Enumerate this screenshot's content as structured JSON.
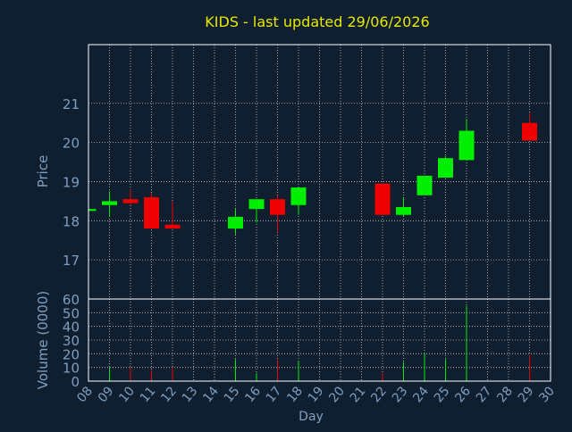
{
  "colors": {
    "background": "#0f1f30",
    "title": "#e8e800",
    "axis_text": "#7f9fbf",
    "grid": "#c8c8c8",
    "frame": "#ffffff",
    "up": "#00ee00",
    "down": "#ee0000"
  },
  "chart_data": {
    "type": "candlestick",
    "title": "KIDS - last updated 29/06/2026",
    "xlabel": "Day",
    "x_ticks": [
      "08",
      "09",
      "10",
      "11",
      "12",
      "13",
      "14",
      "15",
      "16",
      "17",
      "18",
      "19",
      "20",
      "21",
      "22",
      "23",
      "24",
      "25",
      "26",
      "27",
      "28",
      "29",
      "30"
    ],
    "grid": true,
    "price_panel": {
      "ylabel": "Price",
      "ylim": [
        16,
        22.5
      ],
      "y_ticks": [
        "17",
        "18",
        "19",
        "20",
        "21"
      ],
      "candles": [
        {
          "day": "08",
          "open": 18.25,
          "close": 18.3,
          "high": 18.35,
          "low": 18.2
        },
        {
          "day": "09",
          "open": 18.4,
          "close": 18.5,
          "high": 18.75,
          "low": 18.1
        },
        {
          "day": "10",
          "open": 18.55,
          "close": 18.45,
          "high": 18.8,
          "low": 18.4
        },
        {
          "day": "11",
          "open": 18.6,
          "close": 17.8,
          "high": 18.7,
          "low": 17.8
        },
        {
          "day": "12",
          "open": 17.9,
          "close": 17.8,
          "high": 18.5,
          "low": 17.8
        },
        {
          "day": "15",
          "open": 17.8,
          "close": 18.1,
          "high": 18.3,
          "low": 17.65
        },
        {
          "day": "16",
          "open": 18.3,
          "close": 18.55,
          "high": 18.55,
          "low": 17.95
        },
        {
          "day": "17",
          "open": 18.55,
          "close": 18.15,
          "high": 18.65,
          "low": 17.7
        },
        {
          "day": "18",
          "open": 18.4,
          "close": 18.85,
          "high": 18.85,
          "low": 18.15
        },
        {
          "day": "22",
          "open": 18.95,
          "close": 18.15,
          "high": 18.95,
          "low": 18.15
        },
        {
          "day": "23",
          "open": 18.15,
          "close": 18.35,
          "high": 18.6,
          "low": 18.1
        },
        {
          "day": "24",
          "open": 18.65,
          "close": 19.15,
          "high": 19.15,
          "low": 18.65
        },
        {
          "day": "25",
          "open": 19.1,
          "close": 19.6,
          "high": 19.65,
          "low": 19.1
        },
        {
          "day": "26",
          "open": 19.55,
          "close": 20.3,
          "high": 20.6,
          "low": 19.55
        },
        {
          "day": "29",
          "open": 20.5,
          "close": 20.05,
          "high": 20.75,
          "low": 20.05
        }
      ]
    },
    "volume_panel": {
      "ylabel": "Volume (0000)",
      "ylim": [
        0,
        60
      ],
      "y_ticks": [
        "0",
        "10",
        "20",
        "30",
        "40",
        "50",
        "60"
      ],
      "bars": [
        {
          "day": "09",
          "value": 10,
          "direction": "up"
        },
        {
          "day": "10",
          "value": 10,
          "direction": "down"
        },
        {
          "day": "11",
          "value": 8,
          "direction": "down"
        },
        {
          "day": "12",
          "value": 10,
          "direction": "down"
        },
        {
          "day": "15",
          "value": 16,
          "direction": "up"
        },
        {
          "day": "16",
          "value": 6,
          "direction": "up"
        },
        {
          "day": "17",
          "value": 16,
          "direction": "down"
        },
        {
          "day": "18",
          "value": 15,
          "direction": "up"
        },
        {
          "day": "22",
          "value": 6,
          "direction": "down"
        },
        {
          "day": "23",
          "value": 14,
          "direction": "up"
        },
        {
          "day": "24",
          "value": 20,
          "direction": "up"
        },
        {
          "day": "25",
          "value": 16,
          "direction": "up"
        },
        {
          "day": "26",
          "value": 55,
          "direction": "up"
        },
        {
          "day": "29",
          "value": 19,
          "direction": "down"
        }
      ]
    }
  }
}
